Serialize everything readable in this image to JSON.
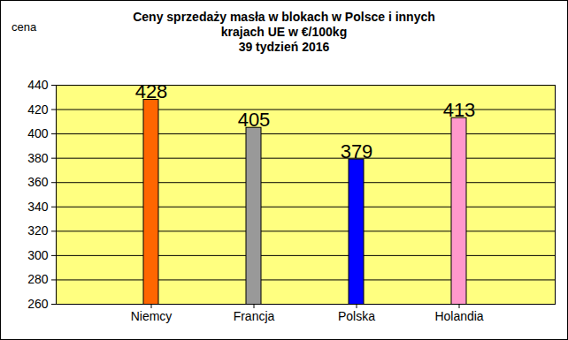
{
  "chart_data": {
    "type": "bar",
    "title": "Ceny sprzedaży masła w blokach w Polsce i  innych\nkrajach UE w €/100kg",
    "subtitle": "39 tydzień 2016",
    "y_label": "cena",
    "categories": [
      "Niemcy",
      "Francja",
      "Polska",
      "Holandia"
    ],
    "values": [
      428,
      405,
      379,
      413
    ],
    "colors": [
      "#ff6600",
      "#999999",
      "#0000ff",
      "#ff99cc"
    ],
    "ylim": [
      260,
      440
    ],
    "yticks": [
      260,
      280,
      300,
      320,
      340,
      360,
      380,
      400,
      420,
      440
    ],
    "grid": true,
    "data_labels": true
  }
}
